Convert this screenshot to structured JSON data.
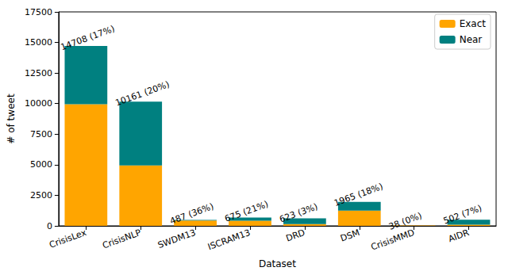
{
  "chart_data": {
    "type": "bar",
    "stacked": true,
    "x_label": "Dataset",
    "y_label": "# of tweet",
    "categories": [
      "CrisisLex",
      "CrisisNLP",
      "SWDM13",
      "ISCRAM13",
      "DRD",
      "DSM",
      "CrisisMMD",
      "AIDR"
    ],
    "series": [
      {
        "name": "Exact",
        "color": "#ffa500",
        "values": [
          9950,
          4950,
          430,
          420,
          150,
          1250,
          30,
          100
        ]
      },
      {
        "name": "Near",
        "color": "#008080",
        "values": [
          4758,
          5211,
          57,
          255,
          473,
          715,
          8,
          402
        ]
      }
    ],
    "annotations": [
      "14708 (17%)",
      "10161 (20%)",
      "487 (36%)",
      "675 (21%)",
      "623 (3%)",
      "1965 (18%)",
      "38 (0%)",
      "502 (7%)"
    ],
    "ylim": [
      0,
      17500
    ],
    "yticks": [
      0,
      2500,
      5000,
      7500,
      10000,
      12500,
      15000,
      17500
    ],
    "grid": false,
    "legend": "upper right"
  }
}
